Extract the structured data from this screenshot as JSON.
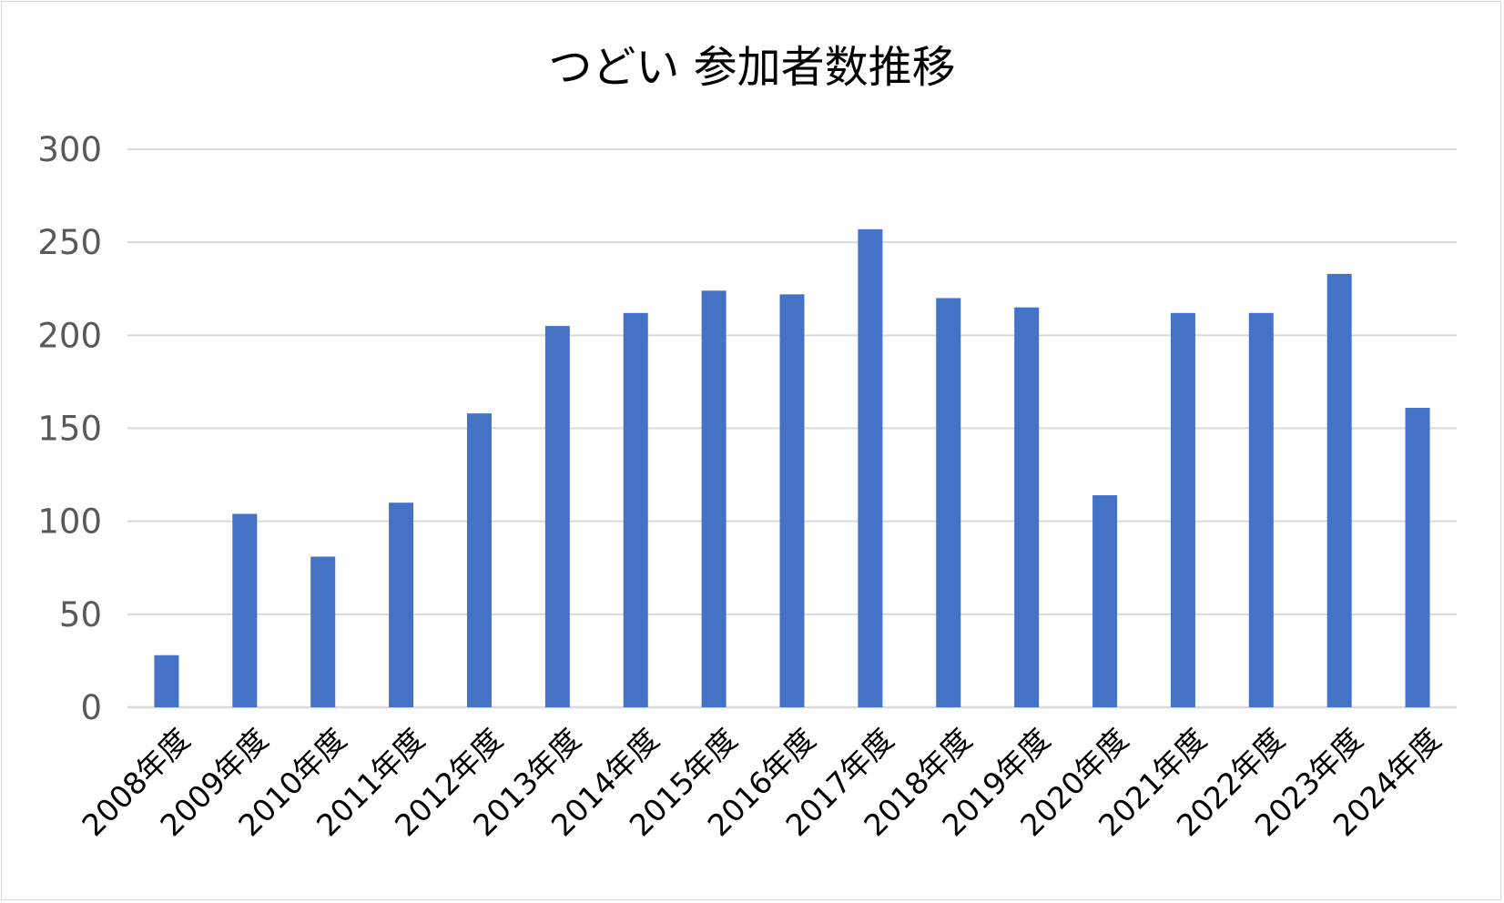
{
  "chart_data": {
    "type": "bar",
    "title": "つどい 参加者数推移",
    "xlabel": "",
    "ylabel": "",
    "categories": [
      "2008年度",
      "2009年度",
      "2010年度",
      "2011年度",
      "2012年度",
      "2013年度",
      "2014年度",
      "2015年度",
      "2016年度",
      "2017年度",
      "2018年度",
      "2019年度",
      "2020年度",
      "2021年度",
      "2022年度",
      "2023年度",
      "2024年度"
    ],
    "values": [
      28,
      104,
      81,
      110,
      158,
      205,
      212,
      224,
      222,
      257,
      220,
      215,
      114,
      212,
      212,
      233,
      161
    ],
    "ylim": [
      0,
      300
    ],
    "yticks": [
      "0",
      "50",
      "100",
      "150",
      "200",
      "250",
      "300"
    ],
    "grid": true,
    "legend": "none",
    "colors": {
      "bar": "#4472C4",
      "grid": "#D9D9D9",
      "tick_text": "#595959",
      "title_text": "#000000"
    }
  }
}
